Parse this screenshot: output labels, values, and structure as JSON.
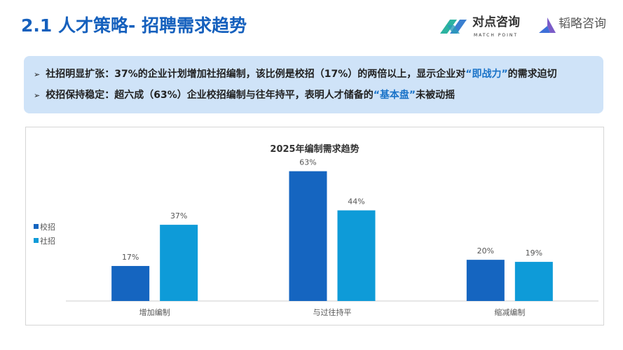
{
  "header": {
    "title": "2.1 人才策略- 招聘需求趋势"
  },
  "logos": [
    {
      "name": "对点咨询",
      "subtitle": "MATCH POINT"
    },
    {
      "name": "韬略咨询"
    }
  ],
  "callout": {
    "lines": [
      {
        "before": "社招明显扩张：37%的企业计划增加社招编制，该比例是校招（17%）的两倍以上，显示企业对",
        "highlight": "“即战力”",
        "after": "的需求迫切"
      },
      {
        "before": "校招保持稳定：超六成（63%）企业校招编制与往年持平，表明人才储备的",
        "highlight": "“基本盘”",
        "after": "未被动摇"
      }
    ],
    "highlight_color": "#1a73c8"
  },
  "chart_data": {
    "type": "bar",
    "title": "2025年编制需求趋势",
    "categories": [
      "增加编制",
      "与过往持平",
      "缩减编制"
    ],
    "series": [
      {
        "name": "校招",
        "values": [
          17,
          63,
          20
        ],
        "labels": [
          "17%",
          "63%",
          "20%"
        ],
        "color": "#1565c0"
      },
      {
        "name": "社招",
        "values": [
          37,
          44,
          19
        ],
        "labels": [
          "37%",
          "44%",
          "19%"
        ],
        "color": "#0e9bd8"
      }
    ],
    "unit": "%",
    "ylim": [
      0,
      70
    ],
    "grid": false,
    "legend": "left"
  }
}
